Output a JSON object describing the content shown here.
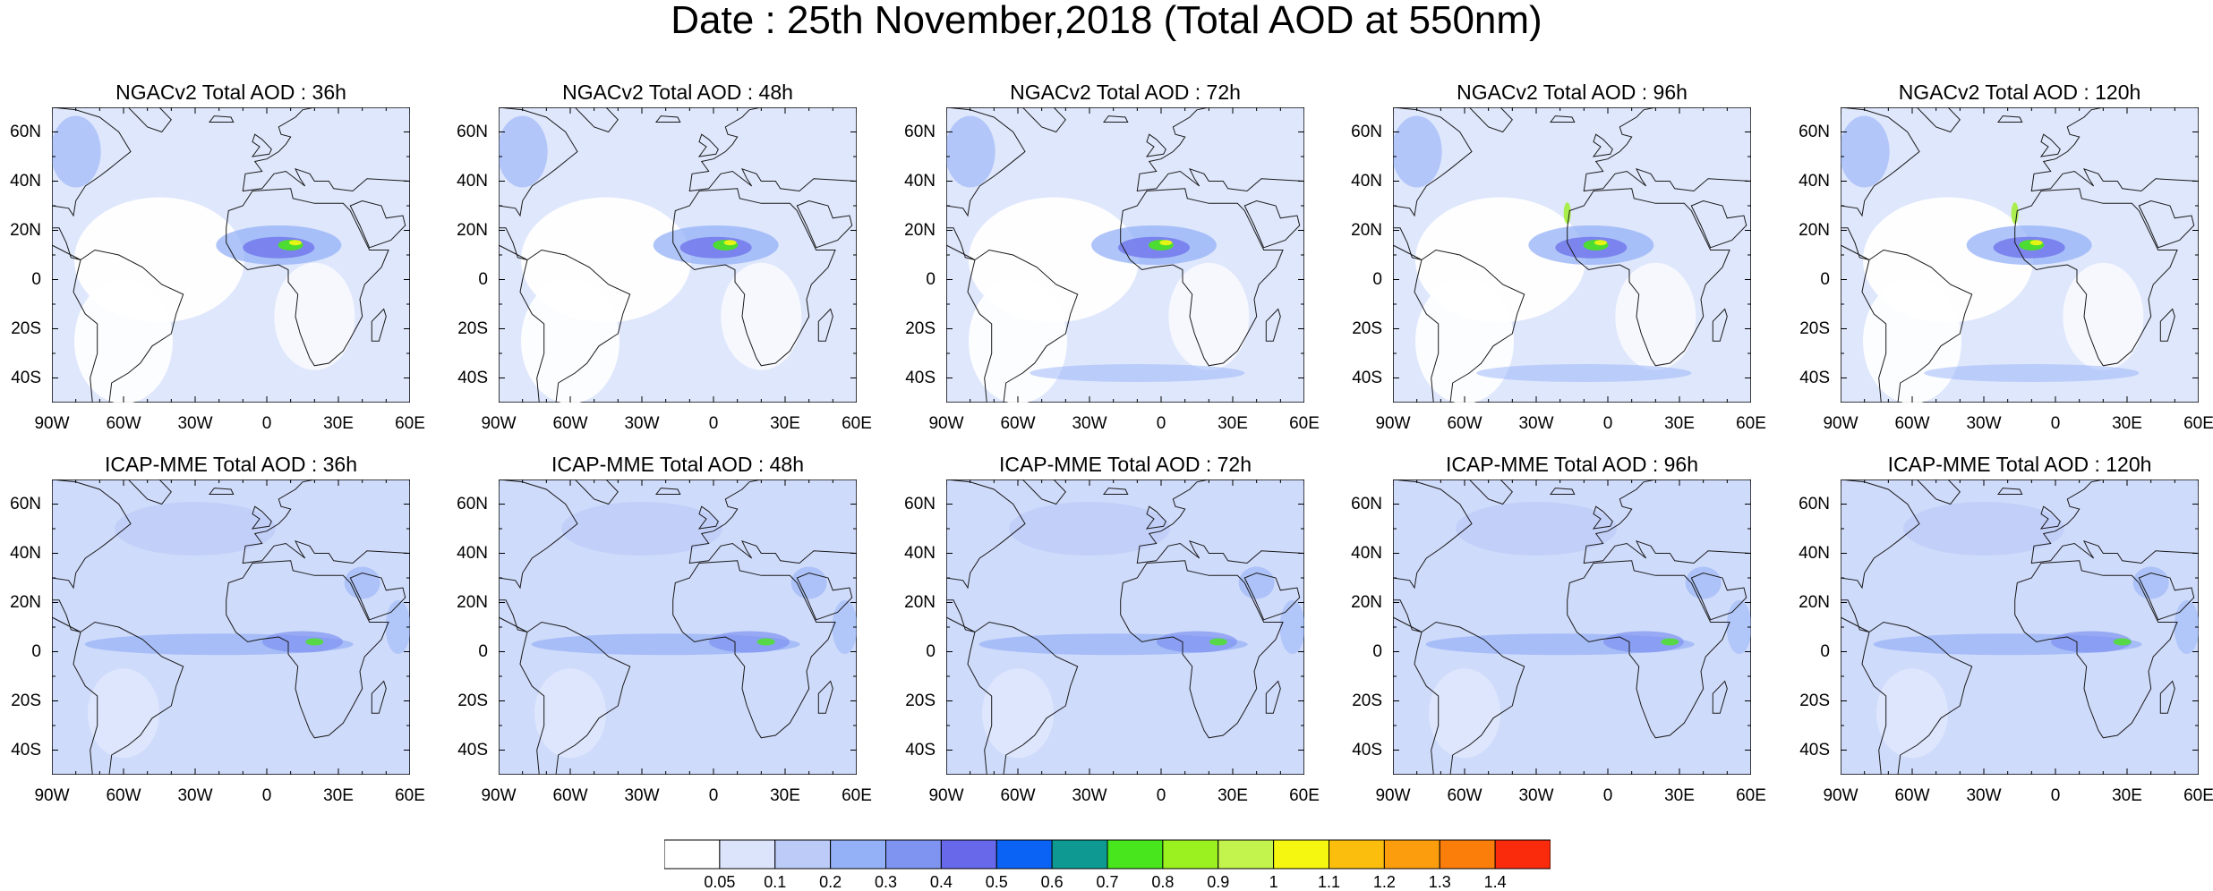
{
  "title": "Date : 25th November,2018 (Total AOD at 550nm)",
  "axes": {
    "lat_labels": [
      "60N",
      "40N",
      "20N",
      "0",
      "20S",
      "40S"
    ],
    "lon_labels": [
      "90W",
      "60W",
      "30W",
      "0",
      "30E",
      "60E"
    ]
  },
  "panels": [
    {
      "title": "NGACv2 Total AOD : 36h",
      "model": "NGACv2",
      "lead": "36h"
    },
    {
      "title": "NGACv2 Total AOD : 48h",
      "model": "NGACv2",
      "lead": "48h"
    },
    {
      "title": "NGACv2 Total AOD : 72h",
      "model": "NGACv2",
      "lead": "72h"
    },
    {
      "title": "NGACv2 Total AOD : 96h",
      "model": "NGACv2",
      "lead": "96h"
    },
    {
      "title": "NGACv2 Total AOD : 120h",
      "model": "NGACv2",
      "lead": "120h"
    },
    {
      "title": "ICAP-MME Total AOD : 36h",
      "model": "ICAP-MME",
      "lead": "36h"
    },
    {
      "title": "ICAP-MME Total AOD : 48h",
      "model": "ICAP-MME",
      "lead": "48h"
    },
    {
      "title": "ICAP-MME Total AOD : 72h",
      "model": "ICAP-MME",
      "lead": "72h"
    },
    {
      "title": "ICAP-MME Total AOD : 96h",
      "model": "ICAP-MME",
      "lead": "96h"
    },
    {
      "title": "ICAP-MME Total AOD : 120h",
      "model": "ICAP-MME",
      "lead": "120h"
    }
  ],
  "colorbar": {
    "labels": [
      "0.05",
      "0.1",
      "0.2",
      "0.3",
      "0.4",
      "0.5",
      "0.6",
      "0.7",
      "0.8",
      "0.9",
      "1",
      "1.1",
      "1.2",
      "1.3",
      "1.4"
    ],
    "colors": [
      "#ffffff",
      "#dbe4fb",
      "#bccbf8",
      "#94b1f7",
      "#7f93f1",
      "#6769ea",
      "#0b63f6",
      "#0e9a93",
      "#48e61c",
      "#9bf01f",
      "#c3f34d",
      "#f6f711",
      "#fbbe0c",
      "#fb9d0c",
      "#fb7d0a",
      "#fa2a0c"
    ]
  }
}
